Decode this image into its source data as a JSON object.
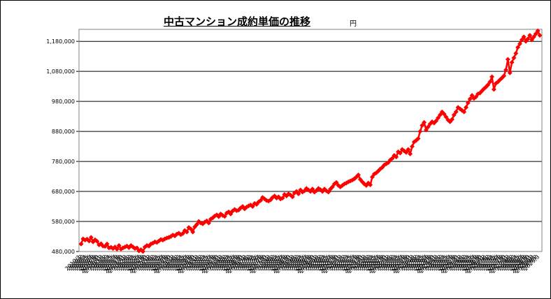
{
  "chart_data": {
    "type": "line",
    "title": "中古マンション成約単価の推移",
    "unit_label": "円",
    "ylim": [
      480000,
      1220000
    ],
    "yticks": [
      480000,
      580000,
      680000,
      780000,
      880000,
      980000,
      1080000,
      1180000
    ],
    "ytick_labels": [
      "480,000",
      "580,000",
      "680,000",
      "780,000",
      "880,000",
      "980,000",
      "1,080,000",
      "1,180,000"
    ],
    "grid": true,
    "legend": "none",
    "x_start": "2010/1",
    "x_end": "2025/2",
    "values": [
      505000,
      522000,
      518000,
      521000,
      515000,
      527000,
      512000,
      519000,
      514000,
      502000,
      506000,
      498000,
      497000,
      505000,
      492000,
      494000,
      490000,
      495000,
      488000,
      500000,
      488000,
      492000,
      495000,
      498000,
      493000,
      500000,
      495000,
      490000,
      492000,
      482000,
      486000,
      480000,
      495000,
      500000,
      498000,
      505000,
      508000,
      512000,
      510000,
      515000,
      520000,
      518000,
      522000,
      525000,
      527000,
      530000,
      535000,
      532000,
      538000,
      541000,
      536000,
      540000,
      550000,
      545000,
      560000,
      555000,
      545000,
      562000,
      570000,
      580000,
      575000,
      572000,
      578000,
      582000,
      575000,
      588000,
      592000,
      598000,
      602000,
      596000,
      605000,
      600000,
      597000,
      608000,
      612000,
      605000,
      615000,
      620000,
      616000,
      618000,
      625000,
      630000,
      622000,
      628000,
      632000,
      635000,
      630000,
      640000,
      637000,
      645000,
      650000,
      660000,
      655000,
      650000,
      648000,
      652000,
      660000,
      665000,
      658000,
      662000,
      655000,
      658000,
      670000,
      665000,
      672000,
      668000,
      662000,
      675000,
      680000,
      672000,
      685000,
      678000,
      682000,
      690000,
      685000,
      680000,
      688000,
      678000,
      683000,
      690000,
      686000,
      680000,
      688000,
      682000,
      678000,
      688000,
      695000,
      705000,
      710000,
      700000,
      695000,
      700000,
      705000,
      708000,
      712000,
      715000,
      718000,
      722000,
      728000,
      735000,
      720000,
      712000,
      705000,
      700000,
      708000,
      702000,
      728000,
      738000,
      742000,
      748000,
      755000,
      760000,
      768000,
      772000,
      776000,
      785000,
      790000,
      800000,
      795000,
      812000,
      808000,
      820000,
      815000,
      810000,
      820000,
      805000,
      830000,
      845000,
      850000,
      856000,
      880000,
      900000,
      910000,
      885000,
      895000,
      905000,
      912000,
      908000,
      915000,
      925000,
      935000,
      945000,
      938000,
      928000,
      918000,
      912000,
      920000,
      935000,
      945000,
      960000,
      955000,
      950000,
      945000,
      960000,
      975000,
      988000,
      1000000,
      990000,
      995000,
      1005000,
      1008000,
      1015000,
      1022000,
      1028000,
      1035000,
      1045000,
      1062000,
      1020000,
      1040000,
      1045000,
      1052000,
      1058000,
      1065000,
      1085000,
      1120000,
      1075000,
      1110000,
      1125000,
      1140000,
      1160000,
      1172000,
      1185000,
      1195000,
      1180000,
      1188000,
      1200000,
      1185000,
      1195000,
      1205000,
      1215000,
      1200000
    ]
  }
}
